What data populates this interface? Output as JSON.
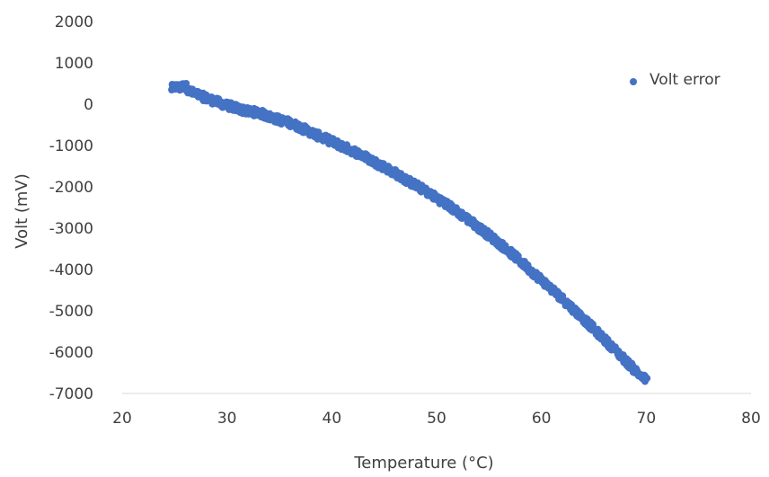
{
  "chart_data": {
    "type": "scatter",
    "title": "",
    "xlabel": "Temperature (°C)",
    "ylabel": "Volt (mV)",
    "xlim": [
      20,
      80
    ],
    "ylim": [
      -7000,
      2000
    ],
    "x_ticks": [
      20,
      30,
      40,
      50,
      60,
      70,
      80
    ],
    "y_ticks": [
      2000,
      1000,
      0,
      -1000,
      -2000,
      -3000,
      -4000,
      -5000,
      -6000,
      -7000
    ],
    "grid": false,
    "legend_position": "top-right",
    "series": [
      {
        "name": "Volt error",
        "color": "#4472C4",
        "x_range": [
          24.7,
          70
        ],
        "points": [
          [
            24.7,
            380
          ],
          [
            25,
            420
          ],
          [
            25.5,
            400
          ],
          [
            26,
            450
          ],
          [
            26.5,
            300
          ],
          [
            27,
            250
          ],
          [
            28,
            150
          ],
          [
            29,
            60
          ],
          [
            30,
            -30
          ],
          [
            31,
            -100
          ],
          [
            32,
            -180
          ],
          [
            33,
            -200
          ],
          [
            34,
            -300
          ],
          [
            35,
            -380
          ],
          [
            36,
            -450
          ],
          [
            37,
            -560
          ],
          [
            38,
            -680
          ],
          [
            39,
            -800
          ],
          [
            40,
            -900
          ],
          [
            41,
            -1020
          ],
          [
            42,
            -1130
          ],
          [
            43,
            -1250
          ],
          [
            44,
            -1390
          ],
          [
            45,
            -1520
          ],
          [
            46,
            -1660
          ],
          [
            47,
            -1820
          ],
          [
            48,
            -1960
          ],
          [
            49,
            -2110
          ],
          [
            50,
            -2270
          ],
          [
            51,
            -2430
          ],
          [
            52,
            -2610
          ],
          [
            53,
            -2790
          ],
          [
            54,
            -2980
          ],
          [
            55,
            -3170
          ],
          [
            56,
            -3370
          ],
          [
            57,
            -3580
          ],
          [
            58,
            -3800
          ],
          [
            59,
            -4030
          ],
          [
            60,
            -4250
          ],
          [
            61,
            -4480
          ],
          [
            62,
            -4710
          ],
          [
            63,
            -4950
          ],
          [
            64,
            -5190
          ],
          [
            65,
            -5440
          ],
          [
            66,
            -5690
          ],
          [
            67,
            -5940
          ],
          [
            68,
            -6200
          ],
          [
            69,
            -6460
          ],
          [
            70,
            -6680
          ]
        ]
      }
    ]
  }
}
